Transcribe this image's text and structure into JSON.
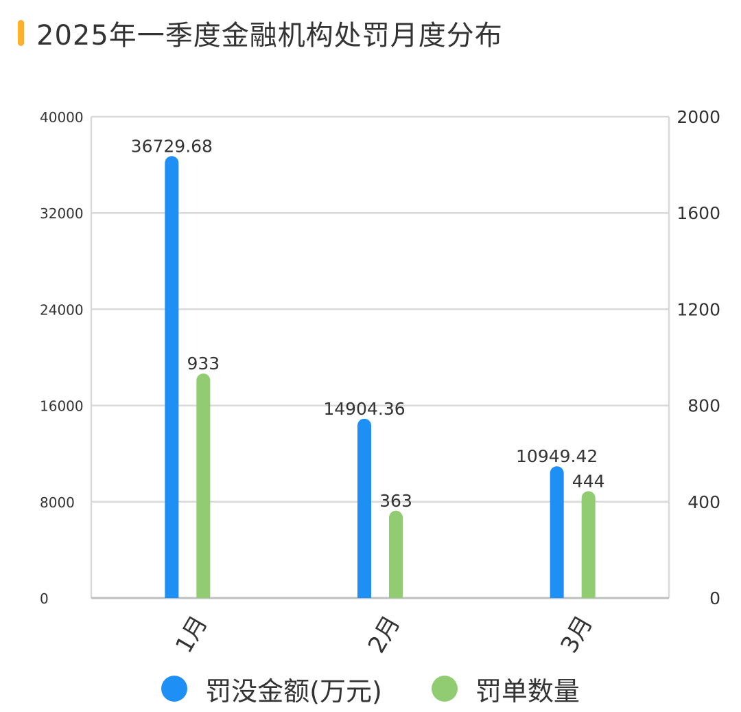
{
  "title": "2025年一季度金融机构处罚月度分布",
  "colors": {
    "accent": "#ffb02e",
    "grid": "#d9d9d9",
    "text": "#333333"
  },
  "chart_data": {
    "type": "bar",
    "categories": [
      "1月",
      "2月",
      "3月"
    ],
    "series": [
      {
        "name": "罚没金额(万元)",
        "axis": "left",
        "color": "#1e90f5",
        "values": [
          36729.68,
          14904.36,
          10949.42
        ],
        "labels": [
          "36729.68",
          "14904.36",
          "10949.42"
        ]
      },
      {
        "name": "罚单数量",
        "axis": "right",
        "color": "#92cc72",
        "values": [
          933,
          363,
          444
        ],
        "labels": [
          "933",
          "363",
          "444"
        ]
      }
    ],
    "y_left": {
      "min": 0,
      "max": 40000,
      "ticks": [
        "0",
        "8000",
        "16000",
        "24000",
        "32000",
        "40000"
      ]
    },
    "y_right": {
      "min": 0,
      "max": 2000,
      "ticks": [
        "0",
        "400",
        "800",
        "1200",
        "1600",
        "2000"
      ]
    },
    "grid": true,
    "legend_position": "bottom-center"
  }
}
